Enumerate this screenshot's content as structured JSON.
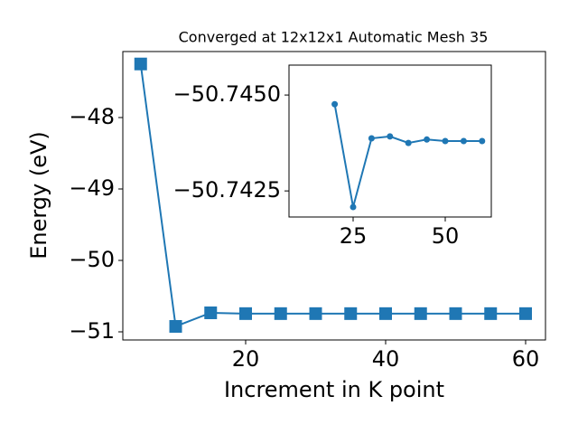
{
  "chart_data": [
    {
      "type": "line",
      "title": "Converged at 12x12x1 Automatic Mesh 35",
      "x_label": "Increment in K point",
      "y_label": "Energy (eV)",
      "x": [
        5,
        10,
        15,
        20,
        25,
        30,
        35,
        40,
        45,
        50,
        55,
        60
      ],
      "series": [
        {
          "color": "#1f77b4",
          "marker": "square",
          "values": [
            -47.25,
            -50.924,
            -50.734,
            -50.745,
            -50.745,
            -50.745,
            -50.745,
            -50.745,
            -50.745,
            -50.745,
            -50.745,
            -50.745
          ]
        }
      ],
      "xlim": [
        2.45,
        62.84
      ],
      "ylim": [
        -51.114,
        -47.076
      ],
      "xticks": [
        20,
        40,
        60
      ],
      "yticks": [
        {
          "value": -48,
          "label": "−48"
        },
        {
          "value": -49,
          "label": "−49"
        },
        {
          "value": -50,
          "label": "−50"
        },
        {
          "value": -51,
          "label": "−51"
        }
      ]
    },
    {
      "type": "line",
      "x": [
        20,
        25,
        30,
        35,
        40,
        45,
        50,
        55,
        60
      ],
      "series": [
        {
          "color": "#1f77b4",
          "marker": "circle",
          "values": [
            -50.74476,
            -50.74208,
            -50.74387,
            -50.74392,
            -50.74375,
            -50.74384,
            -50.7438,
            -50.7438,
            -50.7438
          ]
        }
      ],
      "xlim": [
        7.6,
        62.5
      ],
      "ylim": [
        -50.74182,
        -50.74578
      ],
      "xticks": [
        25,
        50
      ],
      "yticks": [
        {
          "value": -50.745,
          "label": "−50.7450"
        },
        {
          "value": -50.7425,
          "label": "−50.7425"
        }
      ]
    }
  ]
}
